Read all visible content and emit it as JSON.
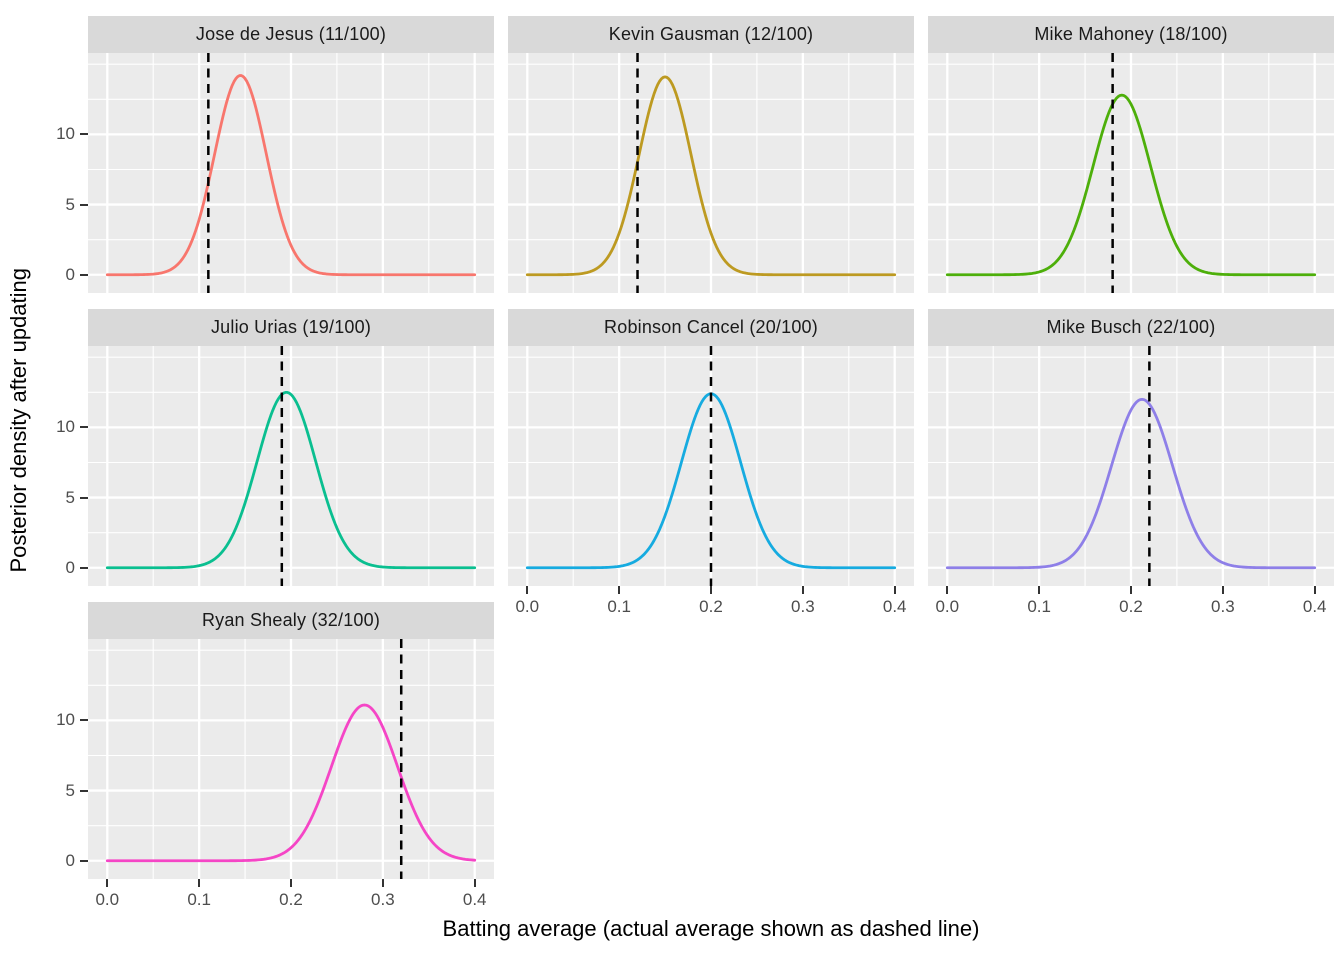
{
  "figure": {
    "kind": "faceted density plot",
    "x_axis_title": "Batting average (actual average shown as dashed line)",
    "y_axis_title": "Posterior density after updating"
  },
  "colors": {
    "panel_background": "#EBEBEB",
    "strip_background": "#D9D9D9",
    "gridline": "#FFFFFF",
    "dashed_line": "#000000",
    "tick_label": "#4D4D4D",
    "axis_title": "#000000"
  },
  "chart_data": {
    "type": "line",
    "subtype": "faceted posterior density curves with vertical dashed reference lines",
    "xlabel": "Batting average (actual average shown as dashed line)",
    "ylabel": "Posterior density after updating",
    "x_ticks": [
      {
        "value": 0.0,
        "label": "0.0"
      },
      {
        "value": 0.1,
        "label": "0.1"
      },
      {
        "value": 0.2,
        "label": "0.2"
      },
      {
        "value": 0.3,
        "label": "0.3"
      },
      {
        "value": 0.4,
        "label": "0.4"
      }
    ],
    "y_ticks": [
      {
        "value": 0,
        "label": "0"
      },
      {
        "value": 5,
        "label": "5"
      },
      {
        "value": 10,
        "label": "10"
      }
    ],
    "x_minor_breaks": [
      0.05,
      0.15,
      0.25,
      0.35
    ],
    "y_minor_breaks": [
      2.5,
      7.5,
      12.5,
      15
    ],
    "x_range": [
      0.0,
      0.4
    ],
    "y_range": [
      0,
      15
    ],
    "grid": true,
    "legend": "none",
    "facet_grid": {
      "columns": 3,
      "rows": 3,
      "occupied": [
        "r0c0",
        "r0c1",
        "r0c2",
        "r1c0",
        "r1c1",
        "r1c2",
        "r2c0"
      ]
    },
    "facets": [
      {
        "title": "Jose de Jesus (11/100)",
        "player": "Jose de Jesus",
        "hits": 11,
        "at_bats": 100,
        "actual_average": 0.11,
        "curve": {
          "peak_x": 0.145,
          "peak_density": 14.2,
          "sd": 0.0281
        },
        "color": "#F8766D"
      },
      {
        "title": "Kevin Gausman (12/100)",
        "player": "Kevin Gausman",
        "hits": 12,
        "at_bats": 100,
        "actual_average": 0.12,
        "curve": {
          "peak_x": 0.15,
          "peak_density": 14.1,
          "sd": 0.0283
        },
        "color": "#BD9A21"
      },
      {
        "title": "Mike Mahoney (18/100)",
        "player": "Mike Mahoney",
        "hits": 18,
        "at_bats": 100,
        "actual_average": 0.18,
        "curve": {
          "peak_x": 0.19,
          "peak_density": 12.8,
          "sd": 0.0312
        },
        "color": "#4DAF0A"
      },
      {
        "title": "Julio Urias (19/100)",
        "player": "Julio Urias",
        "hits": 19,
        "at_bats": 100,
        "actual_average": 0.19,
        "curve": {
          "peak_x": 0.195,
          "peak_density": 12.5,
          "sd": 0.0319
        },
        "color": "#0ABF90"
      },
      {
        "title": "Robinson Cancel (20/100)",
        "player": "Robinson Cancel",
        "hits": 20,
        "at_bats": 100,
        "actual_average": 0.2,
        "curve": {
          "peak_x": 0.2,
          "peak_density": 12.4,
          "sd": 0.0322
        },
        "color": "#16ABE0"
      },
      {
        "title": "Mike Busch (22/100)",
        "player": "Mike Busch",
        "hits": 22,
        "at_bats": 100,
        "actual_average": 0.22,
        "curve": {
          "peak_x": 0.212,
          "peak_density": 12.0,
          "sd": 0.0332
        },
        "color": "#8E7FE8"
      },
      {
        "title": "Ryan Shealy (32/100)",
        "player": "Ryan Shealy",
        "hits": 32,
        "at_bats": 100,
        "actual_average": 0.32,
        "curve": {
          "peak_x": 0.28,
          "peak_density": 11.1,
          "sd": 0.0359
        },
        "color": "#F545C6"
      }
    ]
  }
}
